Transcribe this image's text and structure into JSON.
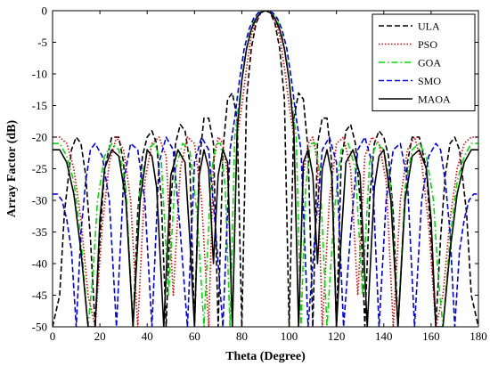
{
  "chart_data": {
    "type": "line",
    "title": "",
    "xlabel": "Theta (Degree)",
    "ylabel": "Array Factor (dB)",
    "xlim": [
      0,
      180
    ],
    "ylim": [
      -50,
      0
    ],
    "xticks": [
      0,
      20,
      40,
      60,
      80,
      100,
      120,
      140,
      160,
      180
    ],
    "yticks": [
      0,
      -5,
      -10,
      -15,
      -20,
      -25,
      -30,
      -35,
      -40,
      -45,
      -50
    ],
    "grid": false,
    "legend_position": "top-right",
    "series": [
      {
        "name": "ULA",
        "color": "#000000",
        "dash": "dashed",
        "x": [
          0,
          3,
          5,
          8,
          10,
          12,
          14,
          16,
          18,
          20,
          22,
          25,
          28,
          30,
          32,
          34,
          36,
          38,
          40,
          42,
          44,
          46,
          48,
          50,
          52,
          54,
          56,
          58,
          60,
          62,
          64,
          66,
          68,
          70,
          72,
          74,
          76,
          78,
          80,
          82,
          84,
          86,
          88,
          90
        ],
        "y": [
          -50,
          -45,
          -32,
          -22,
          -20,
          -21,
          -26,
          -36,
          -50,
          -36,
          -25,
          -20,
          -20,
          -24,
          -36,
          -50,
          -32,
          -23,
          -20,
          -19,
          -21,
          -30,
          -50,
          -30,
          -21,
          -18,
          -19,
          -24,
          -50,
          -24,
          -17,
          -17,
          -21,
          -50,
          -22,
          -14,
          -13,
          -17,
          -50,
          -14,
          -6,
          -2,
          -0.3,
          0
        ]
      },
      {
        "name": "PSO",
        "color": "#e00000",
        "dash": "dotted",
        "x": [
          0,
          3,
          6,
          9,
          12,
          15,
          18,
          21,
          24,
          27,
          30,
          33,
          36,
          39,
          42,
          45,
          48,
          51,
          54,
          57,
          60,
          63,
          66,
          68,
          70,
          72,
          74,
          76,
          78,
          80,
          82,
          84,
          86,
          88,
          90
        ],
        "y": [
          -20,
          -20,
          -21,
          -25,
          -33,
          -45,
          -50,
          -34,
          -24,
          -20,
          -22,
          -30,
          -50,
          -27,
          -21,
          -20,
          -23,
          -45,
          -25,
          -20,
          -21,
          -30,
          -50,
          -24,
          -20,
          -21,
          -26,
          -50,
          -20,
          -15,
          -9,
          -4,
          -1.5,
          -0.3,
          0
        ]
      },
      {
        "name": "GOA",
        "color": "#00dd00",
        "dash": "dashdot",
        "x": [
          0,
          3,
          6,
          9,
          12,
          15,
          17,
          19,
          22,
          25,
          28,
          31,
          34,
          37,
          40,
          43,
          46,
          49,
          52,
          55,
          58,
          61,
          64,
          67,
          69,
          71,
          73,
          75,
          77,
          79,
          81,
          83,
          85,
          87,
          89,
          90
        ],
        "y": [
          -21,
          -21,
          -23,
          -27,
          -36,
          -50,
          -42,
          -30,
          -23,
          -21,
          -22,
          -28,
          -50,
          -28,
          -22,
          -21,
          -24,
          -45,
          -25,
          -21,
          -22,
          -32,
          -50,
          -26,
          -21,
          -21,
          -28,
          -50,
          -20,
          -14,
          -8,
          -4,
          -1.5,
          -0.4,
          -0.05,
          0
        ]
      },
      {
        "name": "SMO",
        "color": "#0000ee",
        "dash": "dashed",
        "x": [
          0,
          2,
          4,
          6,
          8,
          10,
          12,
          14,
          16,
          18,
          21,
          24,
          27,
          30,
          33,
          36,
          39,
          42,
          45,
          48,
          51,
          54,
          57,
          60,
          63,
          66,
          69,
          72,
          75,
          77,
          79,
          81,
          83,
          85,
          87,
          89,
          90
        ],
        "y": [
          -29,
          -29,
          -30,
          -33,
          -38,
          -50,
          -35,
          -27,
          -22,
          -21,
          -23,
          -30,
          -50,
          -27,
          -21,
          -22,
          -30,
          -50,
          -24,
          -20,
          -22,
          -35,
          -50,
          -24,
          -20,
          -22,
          -35,
          -50,
          -22,
          -17,
          -11,
          -6,
          -3,
          -1.2,
          -0.3,
          -0.02,
          0
        ]
      },
      {
        "name": "MAOA",
        "color": "#000000",
        "dash": "solid",
        "x": [
          0,
          3,
          6,
          9,
          12,
          15,
          18,
          20,
          22,
          25,
          28,
          31,
          34,
          37,
          40,
          42,
          44,
          47,
          50,
          53,
          56,
          58,
          60,
          62,
          64,
          66,
          68,
          70,
          72,
          74,
          76,
          78,
          80,
          82,
          84,
          86,
          88,
          90
        ],
        "y": [
          -22,
          -22,
          -24,
          -29,
          -38,
          -50,
          -50,
          -33,
          -25,
          -22,
          -23,
          -30,
          -50,
          -30,
          -22,
          -23,
          -28,
          -50,
          -26,
          -22,
          -24,
          -36,
          -50,
          -26,
          -22,
          -25,
          -40,
          -26,
          -22,
          -24,
          -50,
          -19,
          -11,
          -6,
          -3,
          -1.2,
          -0.3,
          0
        ]
      }
    ]
  }
}
